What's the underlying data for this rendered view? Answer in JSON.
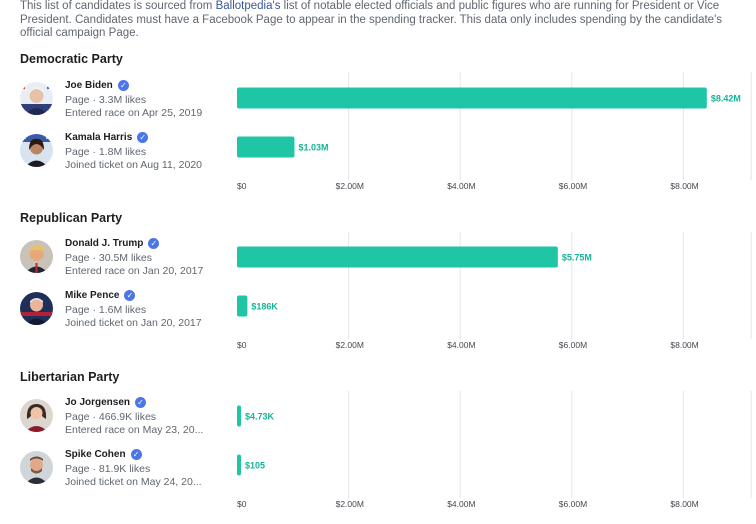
{
  "intro": {
    "before": "This list of candidates is sourced from ",
    "link": "Ballotpedia's",
    "after": " list of notable elected officials and public figures who are running for President or Vice President. Candidates must have a Facebook Page to appear in the spending tracker. This data only includes spending by the candidate's official campaign Page."
  },
  "colors": {
    "bar": "#1fc6a6",
    "label": "#13b597",
    "grid": "#e5e5e5"
  },
  "parties": [
    {
      "name": "Democratic Party",
      "candidates": [
        {
          "name": "Joe Biden",
          "page": "Page · 3.3M likes",
          "event": "Entered race on Apr 25, 2019"
        },
        {
          "name": "Kamala Harris",
          "page": "Page · 1.8M likes",
          "event": "Joined ticket on Aug 11, 2020"
        }
      ]
    },
    {
      "name": "Republican Party",
      "candidates": [
        {
          "name": "Donald J. Trump",
          "page": "Page · 30.5M likes",
          "event": "Entered race on Jan 20, 2017"
        },
        {
          "name": "Mike Pence",
          "page": "Page · 1.6M likes",
          "event": "Joined ticket on Jan 20, 2017"
        }
      ]
    },
    {
      "name": "Libertarian Party",
      "candidates": [
        {
          "name": "Jo Jorgensen",
          "page": "Page · 466.9K likes",
          "event": "Entered race on May 23, 20..."
        },
        {
          "name": "Spike Cohen",
          "page": "Page · 81.9K likes",
          "event": "Joined ticket on May 24, 20..."
        }
      ]
    }
  ],
  "chart_data": [
    {
      "type": "bar",
      "orientation": "horizontal",
      "categories": [
        "Joe Biden",
        "Kamala Harris"
      ],
      "values": [
        8420000,
        1030000
      ],
      "data_labels": [
        "$8.42M",
        "$1.03M"
      ],
      "xlim": [
        0,
        9000000
      ],
      "xticks": [
        "$0",
        "$2.00M",
        "$4.00M",
        "$6.00M",
        "$8.00M"
      ],
      "grid": true
    },
    {
      "type": "bar",
      "orientation": "horizontal",
      "categories": [
        "Donald J. Trump",
        "Mike Pence"
      ],
      "values": [
        5750000,
        186000
      ],
      "data_labels": [
        "$5.75M",
        "$186K"
      ],
      "xlim": [
        0,
        9000000
      ],
      "xticks": [
        "$0",
        "$2.00M",
        "$4.00M",
        "$6.00M",
        "$8.00M"
      ],
      "grid": true
    },
    {
      "type": "bar",
      "orientation": "horizontal",
      "categories": [
        "Jo Jorgensen",
        "Spike Cohen"
      ],
      "values": [
        4730,
        105
      ],
      "data_labels": [
        "$4.73K",
        "$105"
      ],
      "xlim": [
        0,
        9000000
      ],
      "xticks": [
        "$0",
        "$2.00M",
        "$4.00M",
        "$6.00M",
        "$8.00M"
      ],
      "grid": true
    }
  ]
}
